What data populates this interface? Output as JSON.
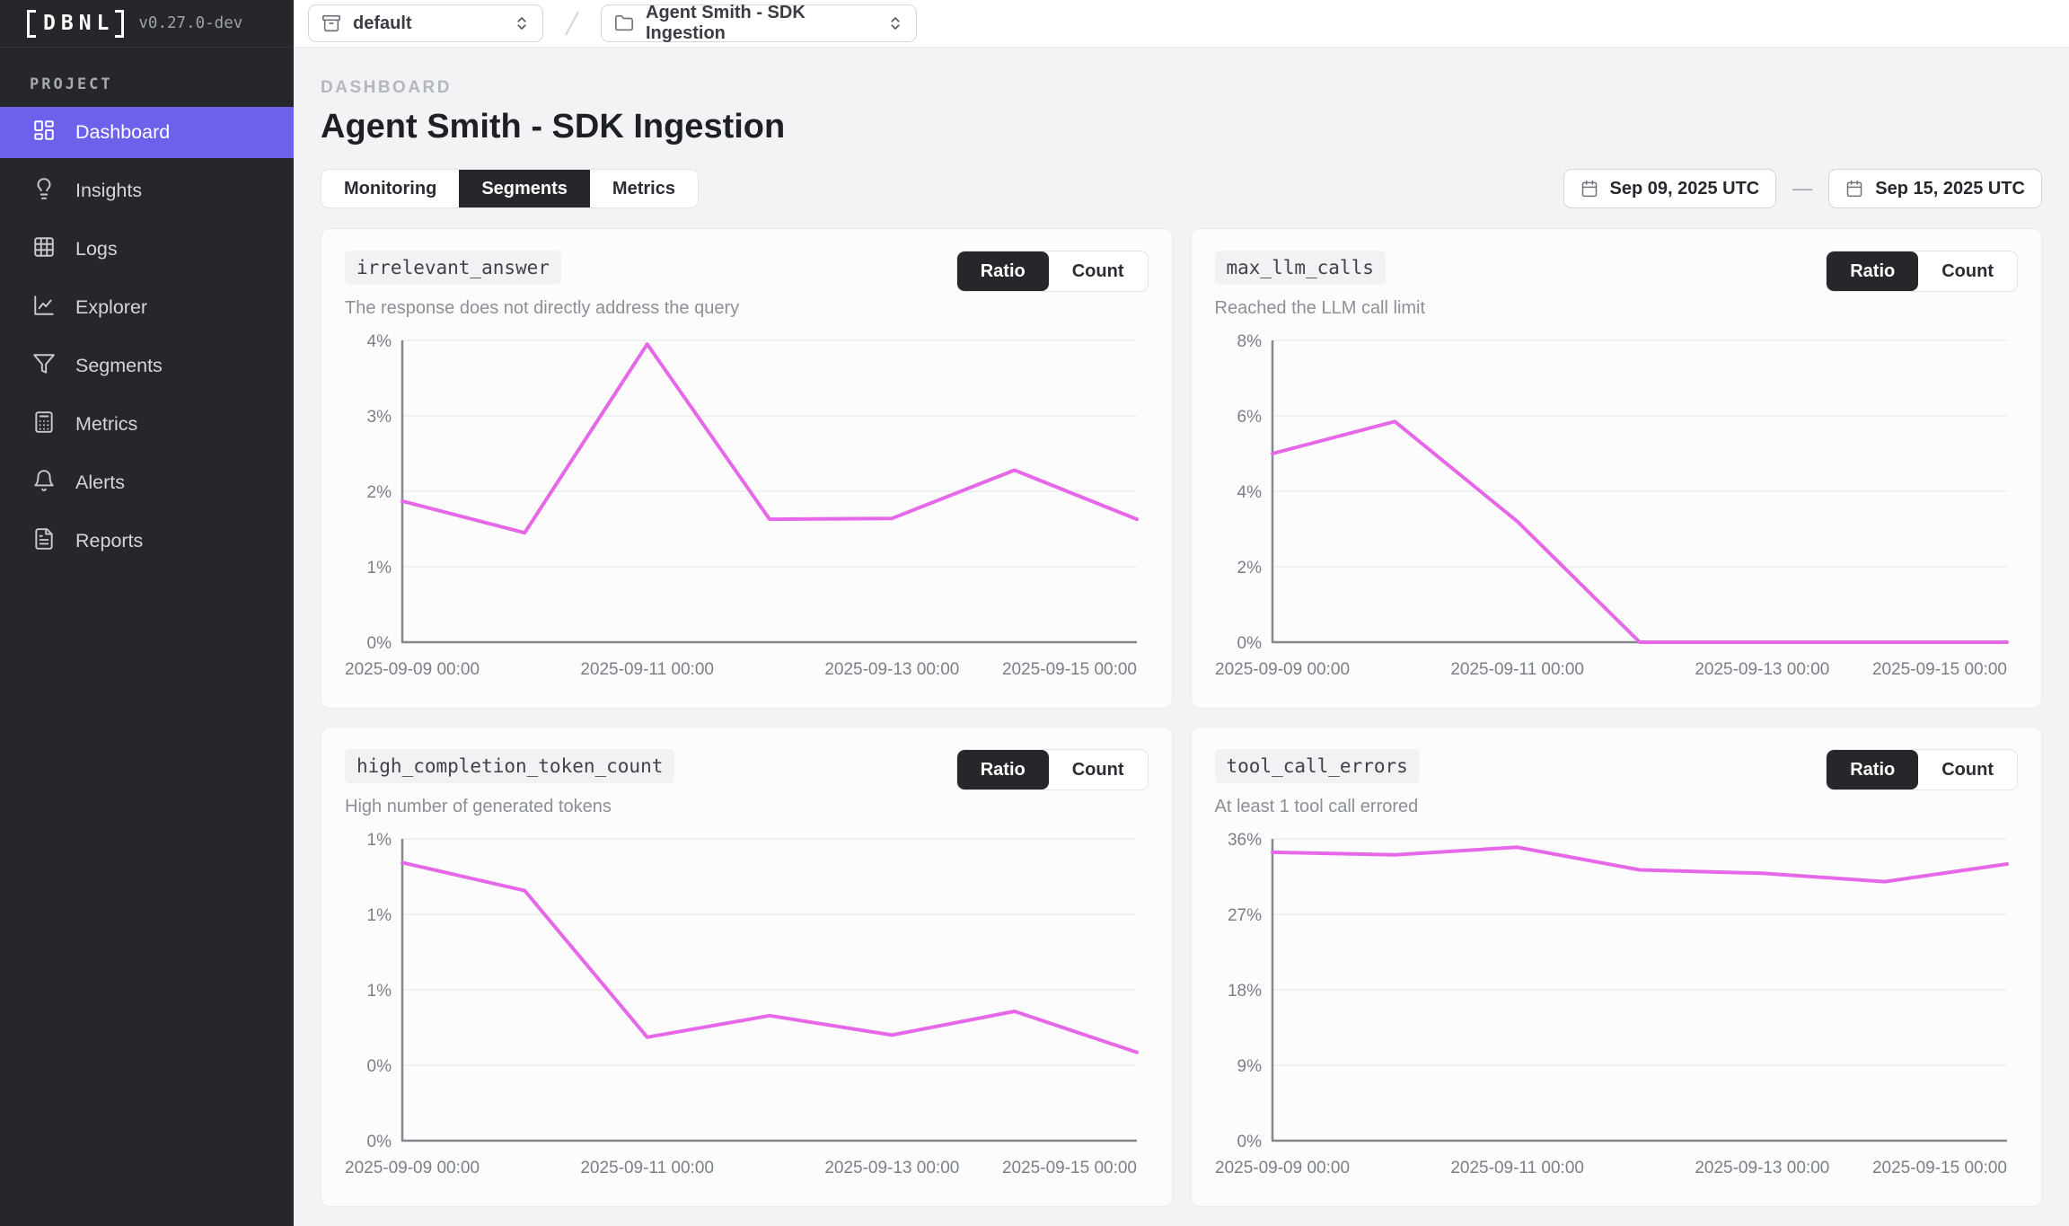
{
  "sidebar": {
    "logo_text": "DBNL",
    "version": "v0.27.0-dev",
    "section_label": "PROJECT",
    "items": [
      {
        "label": "Dashboard",
        "icon": "dashboard",
        "active": true
      },
      {
        "label": "Insights",
        "icon": "insights",
        "active": false
      },
      {
        "label": "Logs",
        "icon": "logs",
        "active": false
      },
      {
        "label": "Explorer",
        "icon": "explorer",
        "active": false
      },
      {
        "label": "Segments",
        "icon": "segments",
        "active": false
      },
      {
        "label": "Metrics",
        "icon": "metrics",
        "active": false
      },
      {
        "label": "Alerts",
        "icon": "alerts",
        "active": false
      },
      {
        "label": "Reports",
        "icon": "reports",
        "active": false
      }
    ]
  },
  "topbar": {
    "namespace_select": {
      "value": "default"
    },
    "project_select": {
      "value": "Agent Smith - SDK Ingestion"
    }
  },
  "header": {
    "breadcrumb": "DASHBOARD",
    "title": "Agent Smith - SDK Ingestion"
  },
  "tabs": [
    {
      "label": "Monitoring",
      "active": false
    },
    {
      "label": "Segments",
      "active": true
    },
    {
      "label": "Metrics",
      "active": false
    }
  ],
  "date_range": {
    "start": "Sep 09, 2025 UTC",
    "separator": "—",
    "end": "Sep 15, 2025 UTC"
  },
  "colors": {
    "accent": "#6d60ea",
    "series_line": "#e668e8",
    "selected_dark": "#26272b"
  },
  "chart_data": [
    {
      "type": "line",
      "title": "irrelevant_answer",
      "subtitle": "The response does not directly address the query",
      "toggle": {
        "options": [
          "Ratio",
          "Count"
        ],
        "selected": "Ratio"
      },
      "x": [
        "2025-09-09",
        "2025-09-10",
        "2025-09-11",
        "2025-09-12",
        "2025-09-13",
        "2025-09-14",
        "2025-09-15"
      ],
      "values": [
        1.87,
        1.45,
        3.95,
        1.63,
        1.64,
        2.28,
        1.63
      ],
      "unit": "%",
      "ylim": [
        0,
        4
      ],
      "y_max": 4,
      "y_ticks": [
        "0%",
        "1%",
        "2%",
        "3%",
        "4%"
      ],
      "x_tick_indices": [
        0,
        2,
        4,
        6
      ],
      "x_tick_labels": [
        "2025-09-09 00:00",
        "2025-09-11 00:00",
        "2025-09-13 00:00",
        "2025-09-15 00:00"
      ],
      "grid": true,
      "legend": "none",
      "line_color": "#e668e8"
    },
    {
      "type": "line",
      "title": "max_llm_calls",
      "subtitle": "Reached the LLM call limit",
      "toggle": {
        "options": [
          "Ratio",
          "Count"
        ],
        "selected": "Ratio"
      },
      "x": [
        "2025-09-09",
        "2025-09-10",
        "2025-09-11",
        "2025-09-12",
        "2025-09-13",
        "2025-09-14",
        "2025-09-15"
      ],
      "values": [
        5.0,
        5.85,
        3.2,
        0,
        0,
        0,
        0
      ],
      "unit": "%",
      "ylim": [
        0,
        8
      ],
      "y_max": 8,
      "y_ticks": [
        "0%",
        "2%",
        "4%",
        "6%",
        "8%"
      ],
      "x_tick_indices": [
        0,
        2,
        4,
        6
      ],
      "x_tick_labels": [
        "2025-09-09 00:00",
        "2025-09-11 00:00",
        "2025-09-13 00:00",
        "2025-09-15 00:00"
      ],
      "grid": true,
      "legend": "none",
      "line_color": "#e668e8"
    },
    {
      "type": "line",
      "title": "high_completion_token_count",
      "subtitle": "High number of generated tokens",
      "toggle": {
        "options": [
          "Ratio",
          "Count"
        ],
        "selected": "Ratio"
      },
      "x": [
        "2025-09-09",
        "2025-09-10",
        "2025-09-11",
        "2025-09-12",
        "2025-09-13",
        "2025-09-14",
        "2025-09-15"
      ],
      "values": [
        1.29,
        1.16,
        0.48,
        0.58,
        0.49,
        0.6,
        0.41
      ],
      "unit": "%",
      "ylim": [
        0,
        1.4
      ],
      "y_max": 1.4,
      "y_ticks": [
        "0%",
        "0%",
        "1%",
        "1%",
        "1%"
      ],
      "x_tick_indices": [
        0,
        2,
        4,
        6
      ],
      "x_tick_labels": [
        "2025-09-09 00:00",
        "2025-09-11 00:00",
        "2025-09-13 00:00",
        "2025-09-15 00:00"
      ],
      "grid": true,
      "legend": "none",
      "line_color": "#e668e8"
    },
    {
      "type": "line",
      "title": "tool_call_errors",
      "subtitle": "At least 1 tool call errored",
      "toggle": {
        "options": [
          "Ratio",
          "Count"
        ],
        "selected": "Ratio"
      },
      "x": [
        "2025-09-09",
        "2025-09-10",
        "2025-09-11",
        "2025-09-12",
        "2025-09-13",
        "2025-09-14",
        "2025-09-15"
      ],
      "values": [
        34.4,
        34.1,
        35.0,
        32.3,
        31.9,
        30.9,
        33.0
      ],
      "unit": "%",
      "ylim": [
        0,
        36
      ],
      "y_max": 36,
      "y_ticks": [
        "0%",
        "9%",
        "18%",
        "27%",
        "36%"
      ],
      "x_tick_indices": [
        0,
        2,
        4,
        6
      ],
      "x_tick_labels": [
        "2025-09-09 00:00",
        "2025-09-11 00:00",
        "2025-09-13 00:00",
        "2025-09-15 00:00"
      ],
      "grid": true,
      "legend": "none",
      "line_color": "#e668e8"
    }
  ]
}
